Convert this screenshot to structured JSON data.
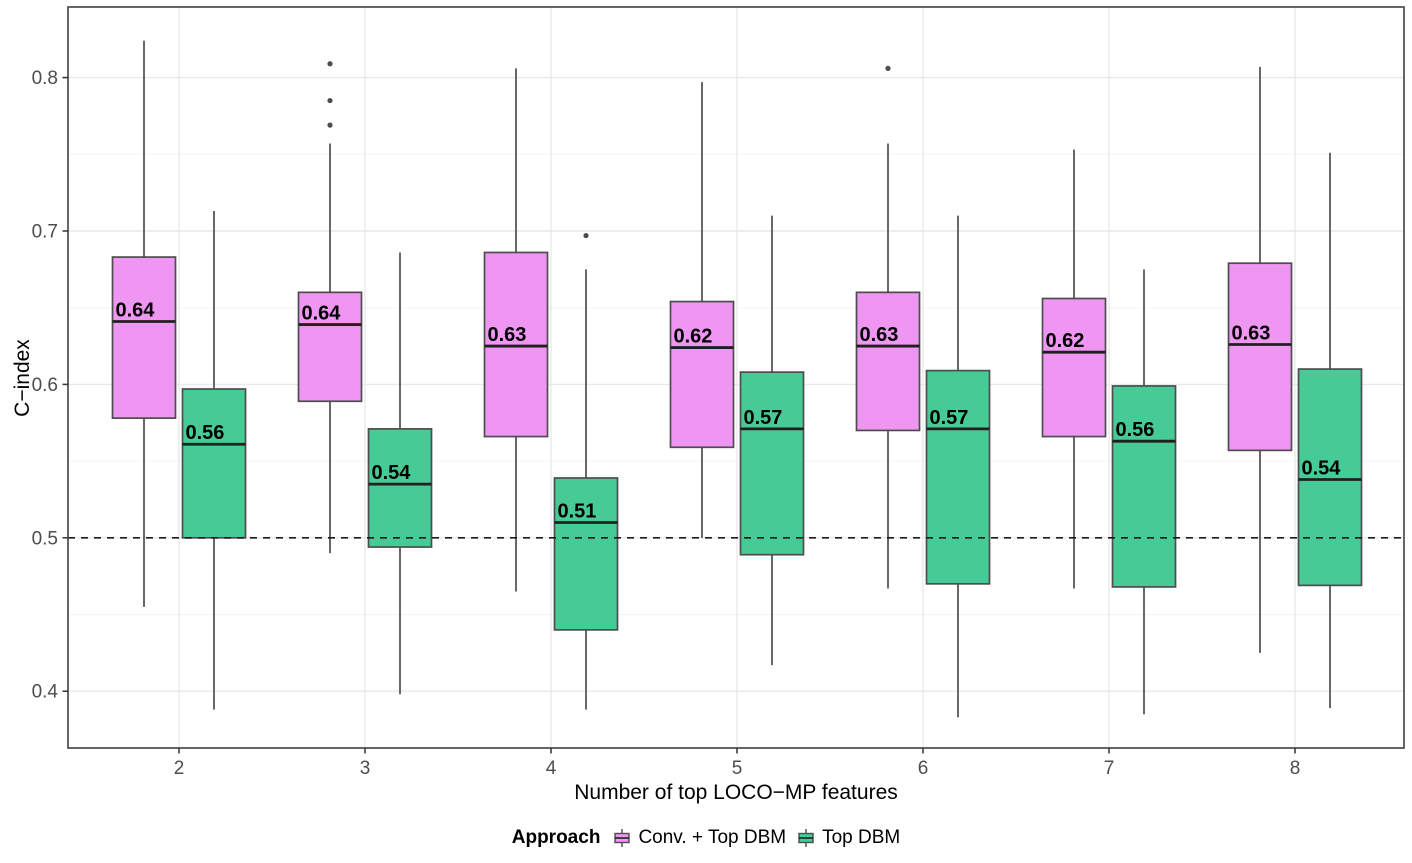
{
  "chart_data": {
    "type": "boxplot",
    "title": "",
    "x_label": "Number of top LOCO−MP features",
    "y_label": "C−index",
    "categories": [
      "2",
      "3",
      "4",
      "5",
      "6",
      "7",
      "8"
    ],
    "y_ticks": [
      0.4,
      0.5,
      0.6,
      0.7,
      0.8
    ],
    "y_tick_labels": [
      "0.4",
      "0.5",
      "0.6",
      "0.7",
      "0.8"
    ],
    "y_minor_ticks": [
      0.45,
      0.55,
      0.65,
      0.75
    ],
    "ylim": [
      0.363,
      0.846
    ],
    "grid": "horizontal major+minor, vertical major per category",
    "legend_position": "bottom",
    "reference_line_y": 0.5,
    "legend": {
      "title": "Approach",
      "entries": [
        {
          "name": "Conv. + Top DBM",
          "color": "#EE96F1"
        },
        {
          "name": "Top DBM",
          "color": "#46CB96"
        }
      ]
    },
    "series": [
      {
        "name": "Conv. + Top DBM",
        "color": "#EE96F1",
        "boxes": [
          {
            "category": "2",
            "low": 0.455,
            "q1": 0.578,
            "median": 0.641,
            "q3": 0.683,
            "high": 0.824,
            "outliers": [],
            "label": "0.64"
          },
          {
            "category": "3",
            "low": 0.49,
            "q1": 0.589,
            "median": 0.639,
            "q3": 0.66,
            "high": 0.757,
            "outliers": [
              0.769,
              0.785,
              0.809
            ],
            "label": "0.64"
          },
          {
            "category": "4",
            "low": 0.465,
            "q1": 0.566,
            "median": 0.625,
            "q3": 0.686,
            "high": 0.806,
            "outliers": [],
            "label": "0.63"
          },
          {
            "category": "5",
            "low": 0.5,
            "q1": 0.559,
            "median": 0.624,
            "q3": 0.654,
            "high": 0.797,
            "outliers": [],
            "label": "0.62"
          },
          {
            "category": "6",
            "low": 0.467,
            "q1": 0.57,
            "median": 0.625,
            "q3": 0.66,
            "high": 0.757,
            "outliers": [
              0.806
            ],
            "label": "0.63"
          },
          {
            "category": "7",
            "low": 0.467,
            "q1": 0.566,
            "median": 0.621,
            "q3": 0.656,
            "high": 0.753,
            "outliers": [],
            "label": "0.62"
          },
          {
            "category": "8",
            "low": 0.425,
            "q1": 0.557,
            "median": 0.626,
            "q3": 0.679,
            "high": 0.807,
            "outliers": [],
            "label": "0.63"
          }
        ]
      },
      {
        "name": "Top DBM",
        "color": "#46CB96",
        "boxes": [
          {
            "category": "2",
            "low": 0.388,
            "q1": 0.5,
            "median": 0.561,
            "q3": 0.597,
            "high": 0.713,
            "outliers": [],
            "label": "0.56"
          },
          {
            "category": "3",
            "low": 0.398,
            "q1": 0.494,
            "median": 0.535,
            "q3": 0.571,
            "high": 0.686,
            "outliers": [],
            "label": "0.54"
          },
          {
            "category": "4",
            "low": 0.388,
            "q1": 0.44,
            "median": 0.51,
            "q3": 0.539,
            "high": 0.675,
            "outliers": [
              0.697
            ],
            "label": "0.51"
          },
          {
            "category": "5",
            "low": 0.417,
            "q1": 0.489,
            "median": 0.571,
            "q3": 0.608,
            "high": 0.71,
            "outliers": [],
            "label": "0.57"
          },
          {
            "category": "6",
            "low": 0.383,
            "q1": 0.47,
            "median": 0.571,
            "q3": 0.609,
            "high": 0.71,
            "outliers": [],
            "label": "0.57"
          },
          {
            "category": "7",
            "low": 0.385,
            "q1": 0.468,
            "median": 0.563,
            "q3": 0.599,
            "high": 0.675,
            "outliers": [],
            "label": "0.56"
          },
          {
            "category": "8",
            "low": 0.389,
            "q1": 0.469,
            "median": 0.538,
            "q3": 0.61,
            "high": 0.751,
            "outliers": [],
            "label": "0.54"
          }
        ]
      }
    ]
  }
}
